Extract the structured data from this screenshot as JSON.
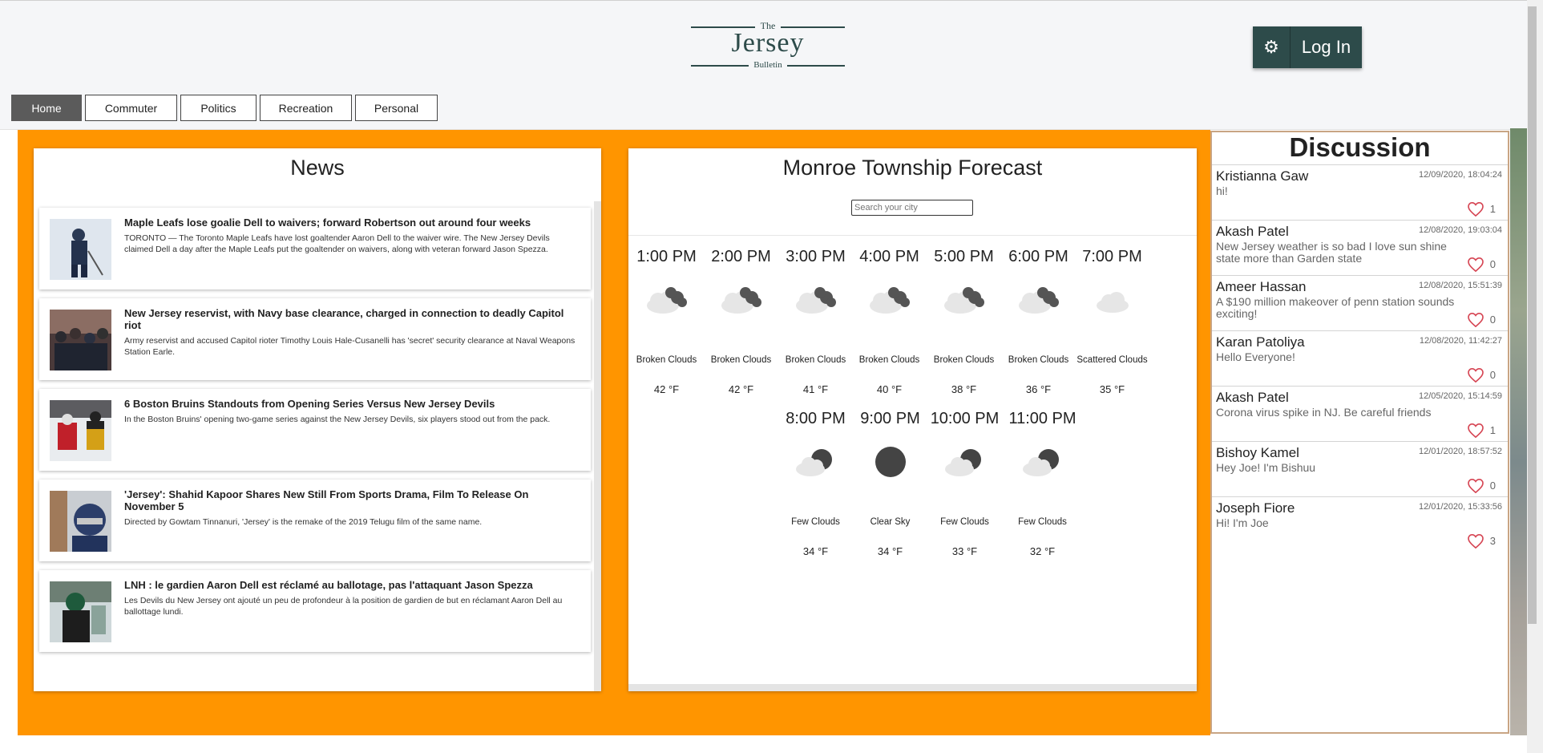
{
  "logo": {
    "the": "The",
    "name": "Jersey",
    "sub": "Bulletin"
  },
  "header": {
    "login_label": "Log In",
    "settings_icon": "gear-icon"
  },
  "nav": [
    {
      "label": "Home",
      "active": true
    },
    {
      "label": "Commuter",
      "active": false
    },
    {
      "label": "Politics",
      "active": false
    },
    {
      "label": "Recreation",
      "active": false
    },
    {
      "label": "Personal",
      "active": false
    }
  ],
  "news": {
    "title": "News",
    "items": [
      {
        "headline": "Maple Leafs lose goalie Dell to waivers; forward Robertson out around four weeks",
        "summary": "TORONTO — The Toronto Maple Leafs have lost goaltender Aaron Dell to the waiver wire. The New Jersey Devils claimed Dell a day after the Maple Leafs put the goaltender on waivers, along with veteran forward Jason Spezza."
      },
      {
        "headline": "New Jersey reservist, with Navy base clearance, charged in connection to deadly Capitol riot",
        "summary": "Army reservist and accused Capitol rioter Timothy Louis Hale-Cusanelli has 'secret' security clearance at Naval Weapons Station Earle."
      },
      {
        "headline": "6 Boston Bruins Standouts from Opening Series Versus New Jersey Devils",
        "summary": "In the Boston Bruins' opening two-game series against the New Jersey Devils, six players stood out from the pack."
      },
      {
        "headline": "'Jersey': Shahid Kapoor Shares New Still From Sports Drama, Film To Release On November 5",
        "summary": "Directed by Gowtam Tinnanuri, 'Jersey' is the remake of the 2019 Telugu film of the same name."
      },
      {
        "headline": "LNH : le gardien Aaron Dell est réclamé au ballotage, pas l'attaquant Jason Spezza",
        "summary": "Les Devils du New Jersey ont ajouté un peu de profondeur à la position de gardien de but en réclamant Aaron Dell au ballottage lundi."
      }
    ]
  },
  "weather": {
    "title": "Monroe Township Forecast",
    "search_placeholder": "Search your city",
    "hours": [
      {
        "time": "1:00 PM",
        "desc": "Broken Clouds",
        "temp": "42 °F",
        "icon": "broken-clouds"
      },
      {
        "time": "2:00 PM",
        "desc": "Broken Clouds",
        "temp": "42 °F",
        "icon": "broken-clouds"
      },
      {
        "time": "3:00 PM",
        "desc": "Broken Clouds",
        "temp": "41 °F",
        "icon": "broken-clouds"
      },
      {
        "time": "4:00 PM",
        "desc": "Broken Clouds",
        "temp": "40 °F",
        "icon": "broken-clouds"
      },
      {
        "time": "5:00 PM",
        "desc": "Broken Clouds",
        "temp": "38 °F",
        "icon": "broken-clouds"
      },
      {
        "time": "6:00 PM",
        "desc": "Broken Clouds",
        "temp": "36 °F",
        "icon": "broken-clouds"
      },
      {
        "time": "7:00 PM",
        "desc": "Scattered Clouds",
        "temp": "35 °F",
        "icon": "scattered-clouds"
      },
      {
        "time": "8:00 PM",
        "desc": "Few Clouds",
        "temp": "34 °F",
        "icon": "few-clouds"
      },
      {
        "time": "9:00 PM",
        "desc": "Clear Sky",
        "temp": "34 °F",
        "icon": "clear-sky"
      },
      {
        "time": "10:00 PM",
        "desc": "Few Clouds",
        "temp": "33 °F",
        "icon": "few-clouds"
      },
      {
        "time": "11:00 PM",
        "desc": "Few Clouds",
        "temp": "32 °F",
        "icon": "few-clouds"
      }
    ]
  },
  "discussion": {
    "title": "Discussion",
    "comments": [
      {
        "name": "Kristianna Gaw",
        "date": "12/09/2020, 18:04:24",
        "text": "hi!",
        "likes": "1"
      },
      {
        "name": "Akash Patel",
        "date": "12/08/2020, 19:03:04",
        "text": "New Jersey weather is so bad I love sun shine state more than Garden state",
        "likes": "0"
      },
      {
        "name": "Ameer Hassan",
        "date": "12/08/2020, 15:51:39",
        "text": "A $190 million makeover of penn station sounds exciting!",
        "likes": "0"
      },
      {
        "name": "Karan Patoliya",
        "date": "12/08/2020, 11:42:27",
        "text": "Hello Everyone!",
        "likes": "0"
      },
      {
        "name": "Akash Patel",
        "date": "12/05/2020, 15:14:59",
        "text": "Corona virus spike in NJ. Be careful friends",
        "likes": "1"
      },
      {
        "name": "Bishoy Kamel",
        "date": "12/01/2020, 18:57:52",
        "text": "Hey Joe! I'm Bishuu",
        "likes": "0"
      },
      {
        "name": "Joseph Fiore",
        "date": "12/01/2020, 15:33:56",
        "text": "Hi! I'm Joe",
        "likes": "3"
      }
    ]
  },
  "colors": {
    "accent": "#2d4b4a",
    "orange": "#ff9500",
    "active_tab": "#5b5b5b"
  }
}
